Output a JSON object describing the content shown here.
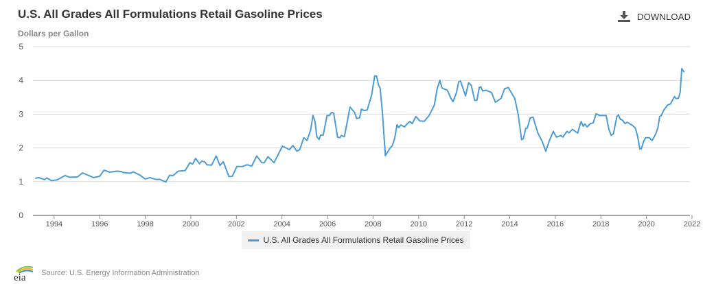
{
  "header": {
    "title": "U.S. All Grades All Formulations Retail Gasoline Prices",
    "download_label": "DOWNLOAD",
    "download_icon": "download-icon"
  },
  "footer": {
    "logo_text": "eia",
    "source": "Source: U.S. Energy Information Administration"
  },
  "colors": {
    "series": "#4a9bd6",
    "grid": "#d8d8d8",
    "axis": "#888888"
  },
  "chart_data": {
    "type": "line",
    "title": "U.S. All Grades All Formulations Retail Gasoline Prices",
    "ylabel": "Dollars per Gallon",
    "xlabel": "",
    "xlim": [
      1993.07,
      2021.91
    ],
    "ylim": [
      0,
      5
    ],
    "yticks": [
      "0",
      "1",
      "2",
      "3",
      "4",
      "5"
    ],
    "xticks": [
      "1994",
      "1996",
      "1998",
      "2000",
      "2002",
      "2004",
      "2006",
      "2008",
      "2010",
      "2012",
      "2014",
      "2016",
      "2018",
      "2020",
      "2022"
    ],
    "grid": true,
    "legend_position": "bottom",
    "series": [
      {
        "name": "U.S. All Grades All Formulations Retail Gasoline Prices",
        "x": [
          1993.18,
          1993.33,
          1993.58,
          1993.68,
          1993.88,
          1994.13,
          1994.48,
          1994.68,
          1995.03,
          1995.24,
          1995.74,
          1996.0,
          1996.19,
          1996.44,
          1996.74,
          1996.94,
          1997.04,
          1997.35,
          1997.47,
          1997.75,
          1998.0,
          1998.2,
          1998.5,
          1998.63,
          1998.9,
          1999.07,
          1999.22,
          1999.45,
          1999.75,
          1999.96,
          2000.08,
          2000.21,
          2000.38,
          2000.48,
          2000.61,
          2000.71,
          2000.91,
          2001.11,
          2001.28,
          2001.43,
          2001.67,
          2001.82,
          2002.02,
          2002.27,
          2002.47,
          2002.67,
          2002.89,
          2003.12,
          2003.22,
          2003.39,
          2003.65,
          2004.02,
          2004.33,
          2004.48,
          2004.66,
          2004.78,
          2004.96,
          2005.1,
          2005.26,
          2005.36,
          2005.45,
          2005.53,
          2005.63,
          2005.7,
          2005.81,
          2005.98,
          2006.08,
          2006.18,
          2006.27,
          2006.44,
          2006.54,
          2006.61,
          2006.74,
          2006.99,
          2007.19,
          2007.28,
          2007.41,
          2007.49,
          2007.59,
          2007.74,
          2007.94,
          2008.07,
          2008.15,
          2008.24,
          2008.31,
          2008.41,
          2008.54,
          2008.74,
          2008.84,
          2008.95,
          2009.05,
          2009.12,
          2009.22,
          2009.38,
          2009.5,
          2009.62,
          2009.72,
          2009.88,
          2010.05,
          2010.25,
          2010.46,
          2010.69,
          2010.81,
          2010.93,
          2011.03,
          2011.26,
          2011.41,
          2011.51,
          2011.66,
          2011.76,
          2011.84,
          2012.06,
          2012.19,
          2012.31,
          2012.46,
          2012.56,
          2012.66,
          2012.73,
          2012.81,
          2012.96,
          2013.2,
          2013.37,
          2013.62,
          2013.77,
          2013.94,
          2014.1,
          2014.22,
          2014.37,
          2014.52,
          2014.6,
          2014.7,
          2014.77,
          2014.9,
          2015.02,
          2015.23,
          2015.43,
          2015.58,
          2015.73,
          2015.91,
          2016.05,
          2016.25,
          2016.33,
          2016.51,
          2016.61,
          2016.75,
          2016.98,
          2017.13,
          2017.23,
          2017.3,
          2017.4,
          2017.54,
          2017.66,
          2017.79,
          2017.94,
          2018.23,
          2018.35,
          2018.45,
          2018.55,
          2018.7,
          2018.77,
          2018.85,
          2018.94,
          2019.06,
          2019.16,
          2019.38,
          2019.51,
          2019.61,
          2019.71,
          2019.78,
          2019.88,
          2019.97,
          2020.13,
          2020.25,
          2020.4,
          2020.5,
          2020.58,
          2020.65,
          2020.77,
          2020.93,
          2021.05,
          2021.23,
          2021.3,
          2021.4,
          2021.48,
          2021.55,
          2021.65
        ],
        "y": [
          1.1,
          1.12,
          1.06,
          1.11,
          1.03,
          1.05,
          1.18,
          1.13,
          1.14,
          1.26,
          1.12,
          1.16,
          1.34,
          1.28,
          1.31,
          1.3,
          1.27,
          1.25,
          1.29,
          1.2,
          1.08,
          1.12,
          1.06,
          1.07,
          0.99,
          1.19,
          1.18,
          1.31,
          1.33,
          1.56,
          1.52,
          1.69,
          1.53,
          1.61,
          1.59,
          1.5,
          1.49,
          1.76,
          1.48,
          1.59,
          1.15,
          1.16,
          1.45,
          1.45,
          1.5,
          1.46,
          1.76,
          1.56,
          1.56,
          1.74,
          1.56,
          2.05,
          1.95,
          2.07,
          1.9,
          1.95,
          2.3,
          2.22,
          2.53,
          2.96,
          2.79,
          2.33,
          2.25,
          2.38,
          2.38,
          2.96,
          2.96,
          3.05,
          3.03,
          2.32,
          2.3,
          2.37,
          2.33,
          3.21,
          3.05,
          2.87,
          2.89,
          3.15,
          3.11,
          3.12,
          3.57,
          4.13,
          4.13,
          3.86,
          3.77,
          3.06,
          1.77,
          1.99,
          2.06,
          2.28,
          2.69,
          2.6,
          2.68,
          2.62,
          2.72,
          2.78,
          2.72,
          2.93,
          2.8,
          2.79,
          2.96,
          3.27,
          3.74,
          4.0,
          3.77,
          3.71,
          3.48,
          3.37,
          3.64,
          3.96,
          3.98,
          3.54,
          3.93,
          3.86,
          3.41,
          3.41,
          3.79,
          3.81,
          3.69,
          3.71,
          3.64,
          3.35,
          3.47,
          3.75,
          3.79,
          3.6,
          3.47,
          2.99,
          2.24,
          2.28,
          2.58,
          2.59,
          2.89,
          2.91,
          2.45,
          2.18,
          1.9,
          2.2,
          2.49,
          2.32,
          2.37,
          2.32,
          2.49,
          2.45,
          2.55,
          2.44,
          2.78,
          2.64,
          2.71,
          2.62,
          2.72,
          2.74,
          3.01,
          2.96,
          2.96,
          2.55,
          2.37,
          2.42,
          2.93,
          2.98,
          2.85,
          2.83,
          2.72,
          2.76,
          2.67,
          2.59,
          2.35,
          1.97,
          1.98,
          2.2,
          2.3,
          2.3,
          2.22,
          2.4,
          2.59,
          2.93,
          2.96,
          3.13,
          3.27,
          3.3,
          3.52,
          3.46,
          3.47,
          3.64,
          4.35,
          4.25
        ]
      }
    ]
  }
}
